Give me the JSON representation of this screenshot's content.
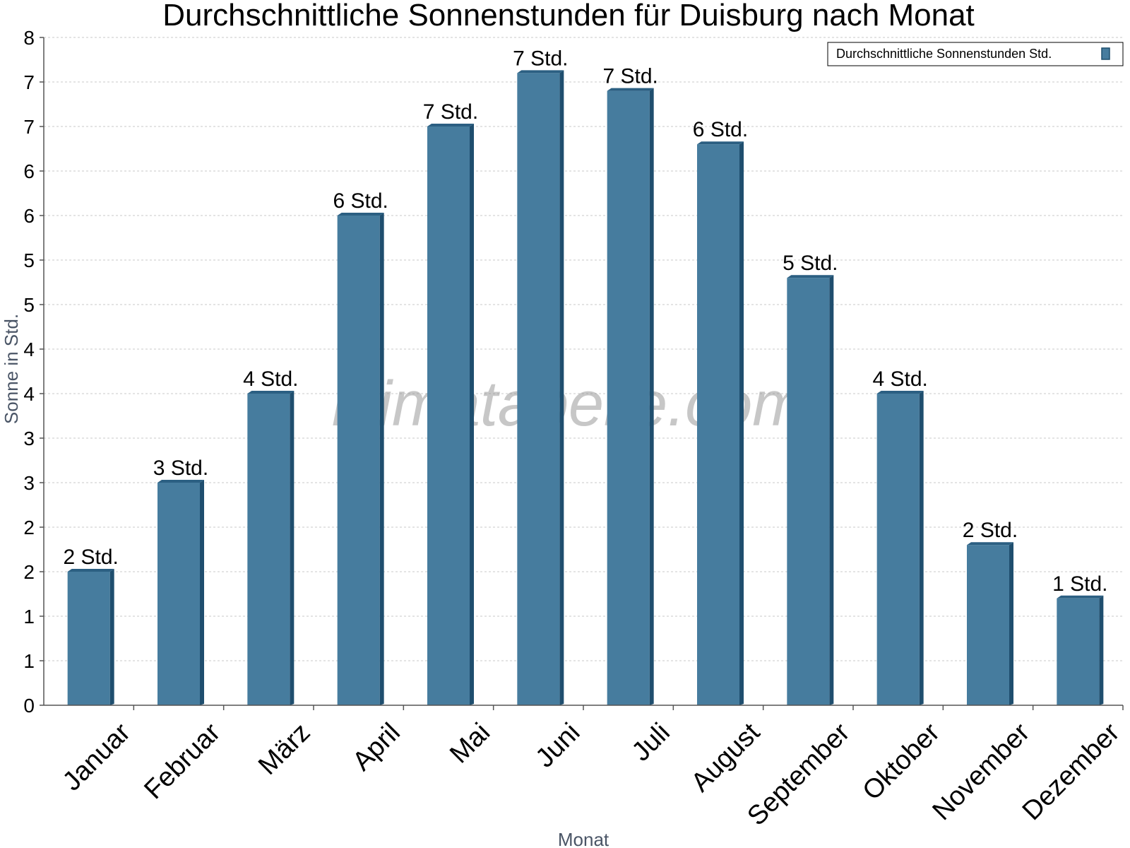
{
  "chart_data": {
    "type": "bar",
    "title": "Durchschnittliche Sonnenstunden für Duisburg nach Monat",
    "xlabel": "Monat",
    "ylabel": "Sonne in Std.",
    "categories": [
      "Januar",
      "Februar",
      "März",
      "April",
      "Mai",
      "Juni",
      "Juli",
      "August",
      "September",
      "Oktober",
      "November",
      "Dezember"
    ],
    "series": [
      {
        "name": "Durchschnittliche Sonnenstunden Std.",
        "values": [
          1.5,
          2.5,
          3.5,
          5.5,
          6.5,
          7.1,
          6.9,
          6.3,
          4.8,
          3.5,
          1.8,
          1.2
        ],
        "labels": [
          "2 Std.",
          "3 Std.",
          "4 Std.",
          "6 Std.",
          "7 Std.",
          "7 Std.",
          "7 Std.",
          "6 Std.",
          "5 Std.",
          "4 Std.",
          "2 Std.",
          "1 Std."
        ]
      }
    ],
    "ylim": [
      0,
      7.5
    ],
    "yticks": [
      0,
      0.5,
      1,
      1.5,
      2,
      2.5,
      3,
      3.5,
      4,
      4.5,
      5,
      5.5,
      6,
      6.5,
      7,
      7.5
    ],
    "ytick_labels": [
      "0",
      "1",
      "1",
      "2",
      "2",
      "3",
      "3",
      "4",
      "4",
      "5",
      "5",
      "6",
      "6",
      "7",
      "7",
      "8"
    ],
    "grid": true,
    "legend_position": "top-right",
    "watermark": "klimatabelle.com",
    "colors": {
      "bar": "#467c9e",
      "bar_side": "#1f4e6e",
      "bar_top": "#2b5f82",
      "grid": "#c8c8c8",
      "axis": "#555555"
    }
  }
}
